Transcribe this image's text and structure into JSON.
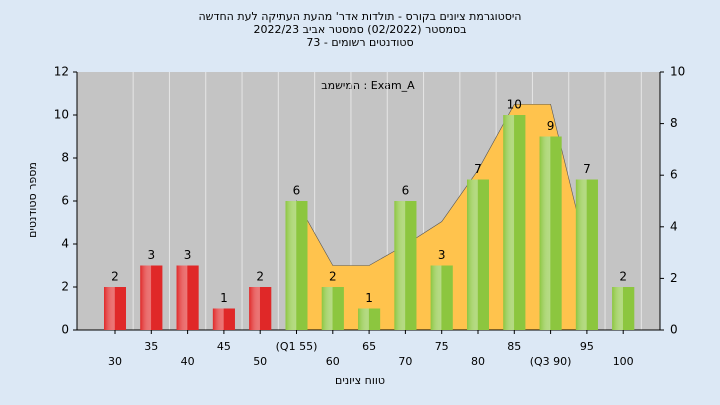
{
  "chart_data": {
    "type": "bar",
    "title": [
      "היסטוגרמת ציונים בקורס - תולדות אדר' מהעת העתיקה לעת החדשה",
      "בסמסטר  (02/2022)  סמסטר אביב 2022/23",
      "סטודנטים רשומים - 73"
    ],
    "annotation": "במשימה : Exam_A",
    "x_label": "טווח ציונים",
    "y_label": "מספר סטודנטים",
    "categories": [
      "30",
      "35",
      "40",
      "45",
      "50",
      "(Q1 55)",
      "60",
      "65",
      "70",
      "75",
      "80",
      "85",
      "(Q3 90)",
      "95",
      "100"
    ],
    "values": [
      2,
      3,
      3,
      1,
      2,
      6,
      2,
      1,
      6,
      3,
      7,
      10,
      9,
      7,
      2
    ],
    "colors": [
      "#e02828",
      "#e02828",
      "#e02828",
      "#e02828",
      "#e02828",
      "#8cc63f",
      "#8cc63f",
      "#8cc63f",
      "#8cc63f",
      "#8cc63f",
      "#8cc63f",
      "#8cc63f",
      "#8cc63f",
      "#8cc63f",
      "#8cc63f"
    ],
    "area": {
      "color": "#ffc34d",
      "axis": "y2",
      "values": [
        null,
        null,
        null,
        null,
        null,
        5,
        2.5,
        2.5,
        3.3,
        4.2,
        6.2,
        8.75,
        8.75,
        3,
        null
      ]
    },
    "ylim": [
      0,
      12
    ],
    "yticks": [
      0,
      2,
      4,
      6,
      8,
      10,
      12
    ],
    "y2lim": [
      0,
      10
    ],
    "y2ticks": [
      0,
      2,
      4,
      6,
      8,
      10
    ],
    "grid": true
  }
}
